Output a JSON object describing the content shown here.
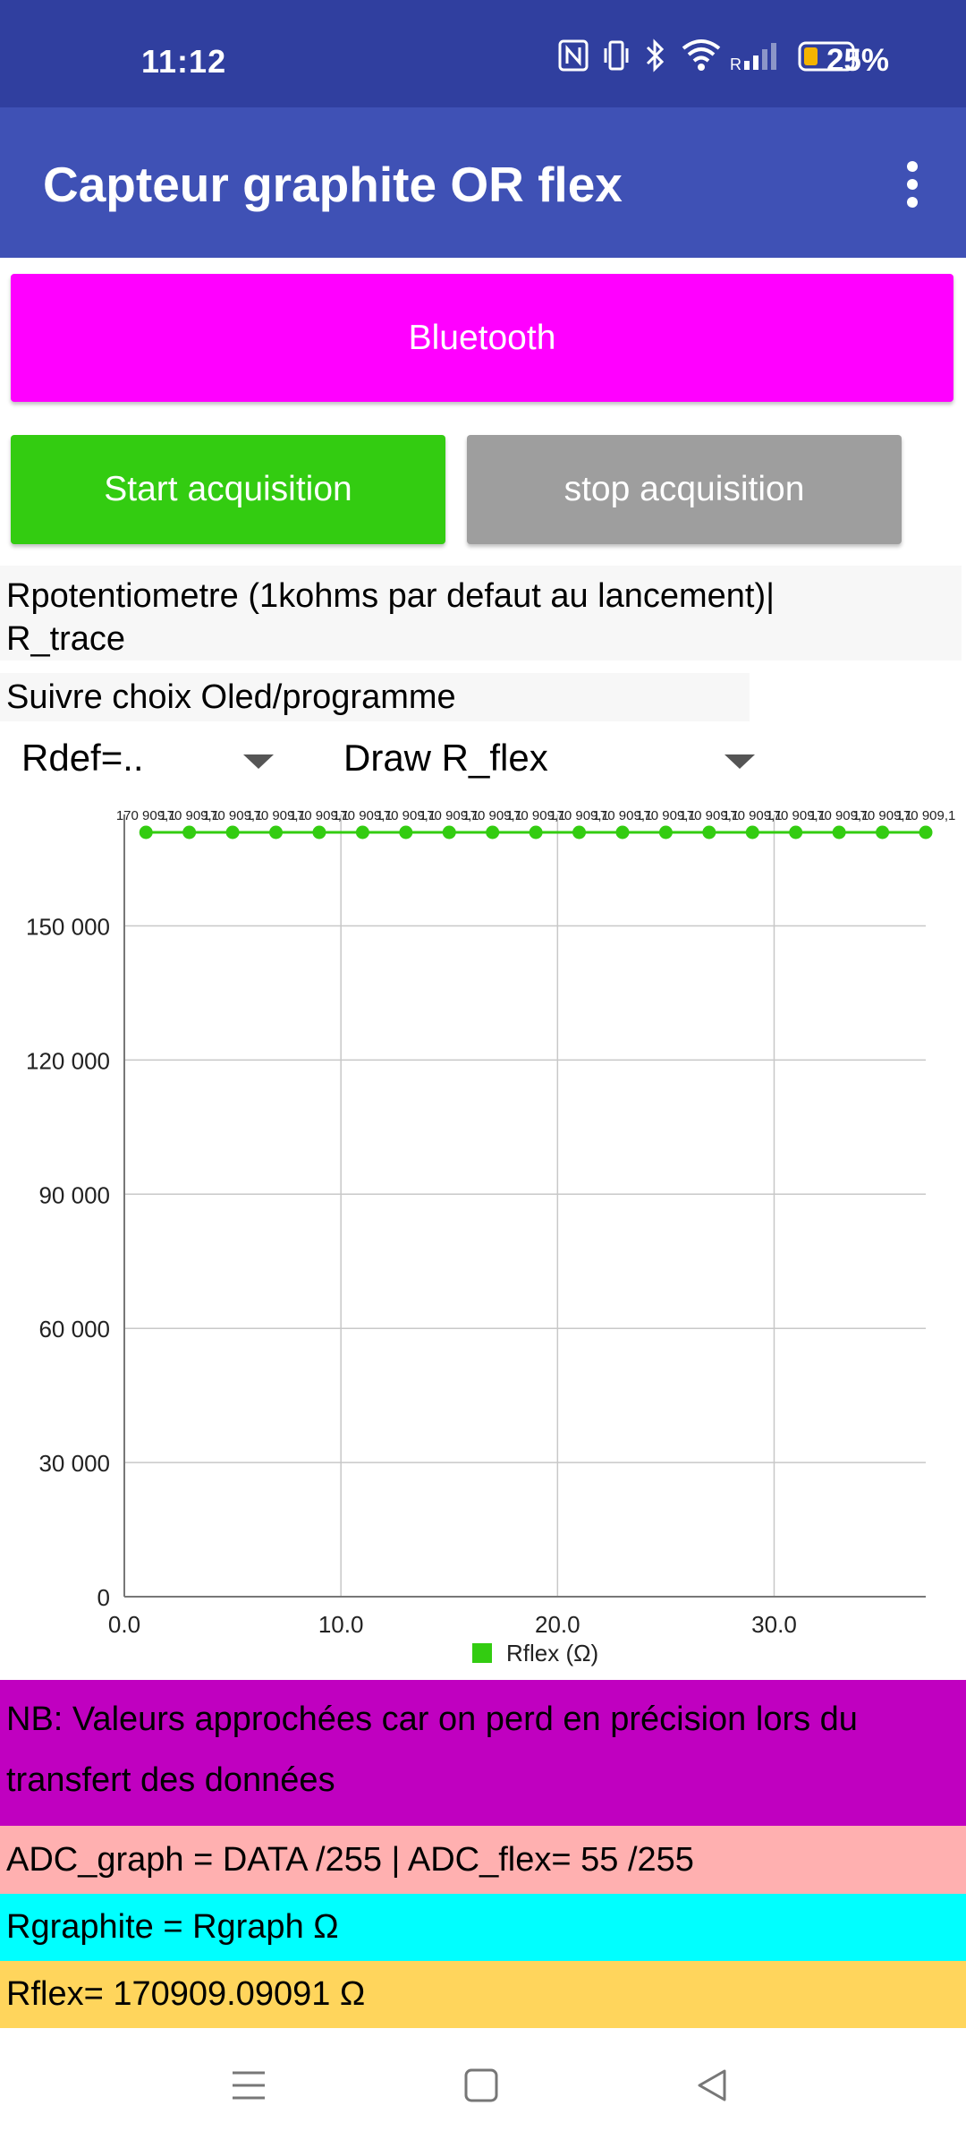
{
  "status": {
    "time": "11:12",
    "battery": "25%"
  },
  "app": {
    "title": "Capteur graphite OR flex"
  },
  "buttons": {
    "bluetooth": "Bluetooth",
    "start": "Start acquisition",
    "stop": "stop acquisition"
  },
  "fields": {
    "rpot_line1": "Rpotentiometre (1kohms par defaut au lancement)|",
    "rpot_line2": "R_trace",
    "suivre": "Suivre choix Oled/programme"
  },
  "spinners": {
    "rdef": "Rdef=..",
    "draw": "Draw R_flex"
  },
  "chart_data": {
    "type": "line",
    "series": [
      {
        "name": "Rflex (Ω)",
        "color": "#33cc11",
        "x": [
          1,
          3,
          5,
          7,
          9,
          11,
          13,
          15,
          17,
          19,
          21,
          23,
          25,
          27,
          29,
          31,
          33,
          35,
          37
        ],
        "y": [
          170909.1,
          170909.1,
          170909.1,
          170909.1,
          170909.1,
          170909.1,
          170909.1,
          170909.1,
          170909.1,
          170909.1,
          170909.1,
          170909.1,
          170909.1,
          170909.1,
          170909.1,
          170909.1,
          170909.1,
          170909.1,
          170909.1
        ]
      }
    ],
    "point_labels": [
      "170 909,1",
      "170 909,1",
      "170 909,1",
      "170 909,1",
      "170 909,1",
      "170 909,1",
      "170 909,1",
      "170 909,1",
      "170 909,1",
      "170 909,1",
      "170 909,1",
      "170 909,1",
      "170 909,1",
      "170 909,1",
      "170 909,1",
      "170 909,1",
      "170 909,1",
      "170 909,1",
      "170 909,1"
    ],
    "xlim": [
      0,
      37
    ],
    "ylim": [
      0,
      170909.1
    ],
    "x_ticks": [
      0,
      10,
      20,
      30
    ],
    "x_tick_labels": [
      "0.0",
      "10.0",
      "20.0",
      "30.0"
    ],
    "y_ticks": [
      0,
      30000,
      60000,
      90000,
      120000,
      150000
    ],
    "y_tick_labels": [
      "0",
      "30 000",
      "60 000",
      "90 000",
      "120 000",
      "150 000"
    ],
    "legend_position": "bottom-center",
    "grid": true
  },
  "bands": {
    "nb": "NB: Valeurs approchées car on perd en précision lors du transfert des données",
    "adc": "ADC_graph = DATA /255  |  ADC_flex= 55 /255",
    "rgraphite": "Rgraphite = Rgraph Ω",
    "rflex": "Rflex=  170909.09091 Ω"
  },
  "colors": {
    "statusbar": "#303f9f",
    "appbar": "#3f51b5",
    "bluetooth": "#ff00ff",
    "start": "#33cc11",
    "stop": "#9e9e9e"
  }
}
